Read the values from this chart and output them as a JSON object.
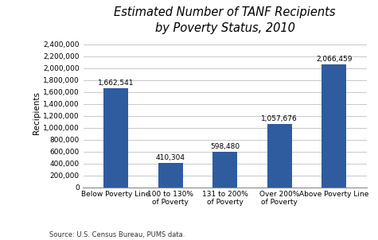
{
  "title": "Estimated Number of TANF Recipients\nby Poverty Status, 2010",
  "categories": [
    "Below Poverty Line",
    "100 to 130%\nof Poverty",
    "131 to 200%\nof Poverty",
    "Over 200%\nof Poverty",
    "Above Poverty Line"
  ],
  "values": [
    1662541,
    410304,
    598480,
    1057676,
    2066459
  ],
  "labels": [
    "1,662,541",
    "410,304",
    "598,480",
    "1,057,676",
    "2,066,459"
  ],
  "bar_color": "#2E5C9E",
  "ylabel": "Recipients",
  "ylim": [
    0,
    2500000
  ],
  "yticks": [
    0,
    200000,
    400000,
    600000,
    800000,
    1000000,
    1200000,
    1400000,
    1600000,
    1800000,
    2000000,
    2200000,
    2400000
  ],
  "ytick_labels": [
    "0",
    "200,000",
    "400,000",
    "600,000",
    "800,000",
    "1,000,000",
    "1,200,000",
    "1,400,000",
    "1,600,000",
    "1,800,000",
    "2,000,000",
    "2,200,000",
    "2,400,000"
  ],
  "source": "Source: U.S. Census Bureau, PUMS data.",
  "background_color": "#ffffff",
  "grid_color": "#c8c8c8",
  "title_fontsize": 10.5,
  "label_fontsize": 6.5,
  "tick_fontsize": 6.5,
  "ylabel_fontsize": 7.5,
  "source_fontsize": 6.0,
  "bar_width": 0.45
}
